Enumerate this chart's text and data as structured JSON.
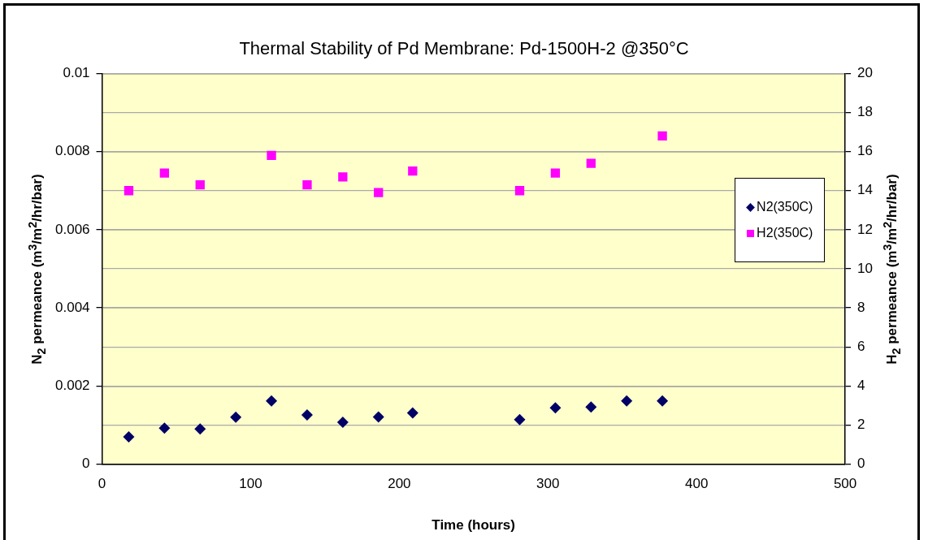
{
  "chart_data": {
    "type": "scatter",
    "title": "Thermal Stability of Pd Membrane: Pd-1500H-2 @350°C",
    "xlabel": "Time (hours)",
    "ylabel": "N$_{2}$ permeance  (m$^{3}$/m$^{2}$/hr/bar)",
    "y2label": "H$_{2}$ permeance  (m$^{3}$/m$^{2}$/hr/bar)",
    "xlim": [
      0,
      500
    ],
    "xticks": [
      0,
      100,
      200,
      300,
      400,
      500
    ],
    "ylim": [
      0,
      0.01
    ],
    "yticks": [
      0,
      0.002,
      0.004,
      0.006,
      0.008,
      0.01
    ],
    "y2lim": [
      0,
      20
    ],
    "y2ticks": [
      0,
      2,
      4,
      6,
      8,
      10,
      12,
      14,
      16,
      18,
      20
    ],
    "grid": "y",
    "legend": "right",
    "series": [
      {
        "name": "N2(350C)",
        "color": "#000066",
        "marker": "diamond",
        "x": [
          18,
          42,
          66,
          90,
          114,
          138,
          162,
          186,
          209,
          281,
          305,
          329,
          353,
          377
        ],
        "values": [
          0.0007,
          0.00092,
          0.0009,
          0.0012,
          0.00162,
          0.00126,
          0.00107,
          0.00121,
          0.00131,
          0.00114,
          0.00144,
          0.00146,
          0.00162,
          0.00162
        ]
      },
      {
        "name": "H2(350C)",
        "color": "#ff00ff",
        "marker": "square",
        "axis": "y2",
        "x": [
          18,
          42,
          66,
          114,
          138,
          162,
          186,
          209,
          281,
          305,
          329,
          377
        ],
        "values": [
          14.0,
          14.9,
          14.3,
          15.8,
          14.3,
          14.7,
          13.9,
          15.0,
          14.0,
          14.9,
          15.4,
          16.8
        ]
      }
    ]
  }
}
